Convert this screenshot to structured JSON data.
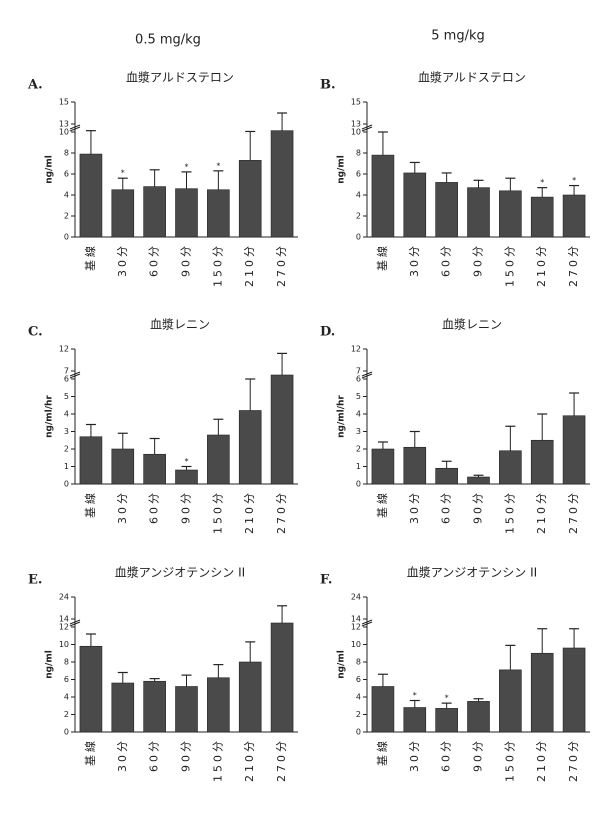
{
  "column_titles": [
    "0.5 mg/kg",
    "5 mg/kg"
  ],
  "chart_data": [
    {
      "type": "bar",
      "panel": "A.",
      "title": "血漿アルドステロン",
      "y_label": "ng/ml",
      "categories": [
        "基線",
        "30分",
        "60分",
        "90分",
        "150分",
        "210分",
        "270分"
      ],
      "values": [
        7.9,
        4.5,
        4.8,
        4.6,
        4.5,
        7.3,
        10.5
      ],
      "errors": [
        2.6,
        1.1,
        1.6,
        1.6,
        1.8,
        2.9,
        3.5
      ],
      "annotations": [
        null,
        "*",
        null,
        "*",
        "*",
        null,
        null
      ],
      "ylim": [
        0,
        15
      ],
      "yticks": [
        0,
        2,
        4,
        6,
        8,
        10,
        13,
        15
      ],
      "y_break": [
        10,
        13
      ],
      "color": "#4a4a4a"
    },
    {
      "type": "bar",
      "panel": "B.",
      "title": "血漿アルドステロン",
      "y_label": "ng/ml",
      "categories": [
        "基線",
        "30分",
        "60分",
        "90分",
        "150分",
        "210分",
        "270分"
      ],
      "values": [
        7.8,
        6.1,
        5.2,
        4.7,
        4.4,
        3.8,
        4.0
      ],
      "errors": [
        2.2,
        1.0,
        0.9,
        0.7,
        1.2,
        0.9,
        0.9
      ],
      "annotations": [
        null,
        null,
        null,
        null,
        null,
        "*",
        "*"
      ],
      "ylim": [
        0,
        15
      ],
      "yticks": [
        0,
        2,
        4,
        6,
        8,
        10,
        13,
        15
      ],
      "y_break": [
        10,
        13
      ],
      "color": "#4a4a4a"
    },
    {
      "type": "bar",
      "panel": "C.",
      "title": "血漿レニン",
      "y_label": "ng/ml/hr",
      "categories": [
        "基線",
        "30分",
        "60分",
        "90分",
        "150分",
        "210分",
        "270分"
      ],
      "values": [
        2.7,
        2.0,
        1.7,
        0.8,
        2.8,
        4.2,
        6.5
      ],
      "errors": [
        0.7,
        0.9,
        0.9,
        0.2,
        0.9,
        1.8,
        4.5
      ],
      "annotations": [
        null,
        null,
        null,
        "*",
        null,
        null,
        null
      ],
      "ylim": [
        0,
        12
      ],
      "yticks": [
        0,
        1,
        2,
        3,
        4,
        5,
        6,
        7,
        12
      ],
      "y_break": [
        6,
        7
      ],
      "color": "#4a4a4a"
    },
    {
      "type": "bar",
      "panel": "D.",
      "title": "血漿レニン",
      "y_label": "ng/ml/hr",
      "categories": [
        "基線",
        "30分",
        "60分",
        "90分",
        "150分",
        "210分",
        "270分"
      ],
      "values": [
        2.0,
        2.1,
        0.9,
        0.4,
        1.9,
        2.5,
        3.9
      ],
      "errors": [
        0.4,
        0.9,
        0.4,
        0.1,
        1.4,
        1.5,
        1.3
      ],
      "ylim": [
        0,
        12
      ],
      "yticks": [
        0,
        1,
        2,
        3,
        4,
        5,
        6,
        7,
        12
      ],
      "y_break": [
        6,
        7
      ],
      "color": "#4a4a4a"
    },
    {
      "type": "bar",
      "panel": "E.",
      "title": "血漿アンジオテンシン II",
      "y_label": "ng/ml",
      "categories": [
        "基線",
        "30分",
        "60分",
        "90分",
        "150分",
        "210分",
        "270分"
      ],
      "values": [
        9.8,
        5.6,
        5.8,
        5.2,
        6.2,
        8.0,
        13
      ],
      "errors": [
        1.4,
        1.2,
        0.3,
        1.3,
        1.5,
        2.3,
        7
      ],
      "ylim": [
        0,
        24
      ],
      "yticks": [
        0,
        2,
        4,
        6,
        8,
        10,
        12,
        14,
        24
      ],
      "y_break": [
        12,
        14
      ],
      "color": "#4a4a4a"
    },
    {
      "type": "bar",
      "panel": "F.",
      "title": "血漿アンジオテンシン II",
      "y_label": "ng/ml",
      "categories": [
        "基線",
        "30分",
        "60分",
        "90分",
        "150分",
        "210分",
        "270分"
      ],
      "values": [
        5.2,
        2.8,
        2.7,
        3.5,
        7.1,
        9.0,
        9.6
      ],
      "errors": [
        1.4,
        0.8,
        0.6,
        0.3,
        2.8,
        2.8,
        2.2
      ],
      "annotations": [
        null,
        "*",
        "*",
        null,
        null,
        null,
        null
      ],
      "ylim": [
        0,
        24
      ],
      "yticks": [
        0,
        2,
        4,
        6,
        8,
        10,
        12,
        14,
        24
      ],
      "y_break": [
        12,
        14
      ],
      "color": "#4a4a4a"
    }
  ]
}
